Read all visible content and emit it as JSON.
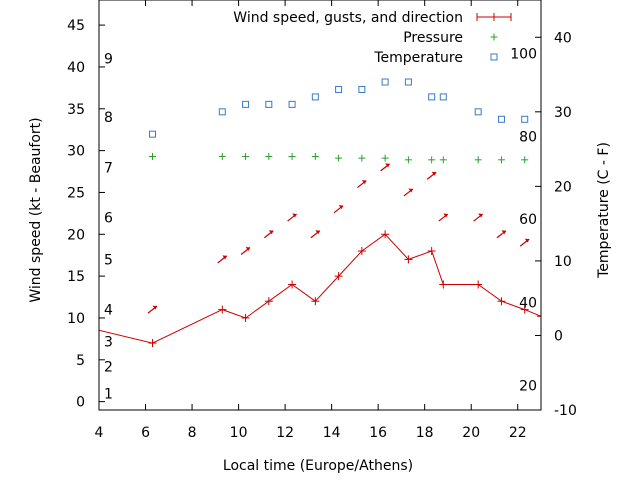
{
  "chart_data": {
    "type": "line",
    "xlabel": "Local time (Europe/Athens)",
    "ylabel_left": "Wind speed (kt - Beaufort)",
    "ylabel_right": "Temperature (C - F)",
    "x_range": [
      4,
      23
    ],
    "y_left_range": [
      -1,
      48
    ],
    "y_right_range": [
      -10,
      45
    ],
    "x_ticks": [
      4,
      6,
      8,
      10,
      12,
      14,
      16,
      18,
      20,
      22
    ],
    "y_left_ticks": [
      0,
      5,
      10,
      15,
      20,
      25,
      30,
      35,
      40,
      45
    ],
    "y_right_ticks": [
      -10,
      0,
      10,
      20,
      30,
      40
    ],
    "beaufort_labels": [
      {
        "label": "1",
        "at": 1.0
      },
      {
        "label": "2",
        "at": 4.2
      },
      {
        "label": "3",
        "at": 7.2
      },
      {
        "label": "4",
        "at": 11.0
      },
      {
        "label": "5",
        "at": 17.0
      },
      {
        "label": "6",
        "at": 22.0
      },
      {
        "label": "7",
        "at": 28.0
      },
      {
        "label": "8",
        "at": 34.0
      },
      {
        "label": "9",
        "at": 41.0
      }
    ],
    "fahrenheit_labels": [
      {
        "label": "20",
        "at": -6.7
      },
      {
        "label": "40",
        "at": 4.4
      },
      {
        "label": "60",
        "at": 15.6
      },
      {
        "label": "80",
        "at": 26.7
      },
      {
        "label": "100",
        "at": 37.8
      }
    ],
    "legend": [
      {
        "name": "Wind speed, gusts, and direction",
        "color": "#cc0000"
      },
      {
        "name": "Pressure",
        "color": "#2aa02a"
      },
      {
        "name": "Temperature",
        "color": "#3b78c8"
      }
    ],
    "wind_speed": {
      "x": [
        3.3,
        6.3,
        9.3,
        10.3,
        11.3,
        12.3,
        13.3,
        14.3,
        15.3,
        16.3,
        17.3,
        18.3,
        18.8,
        20.3,
        21.3,
        22.3,
        23.0
      ],
      "y": [
        9,
        7,
        11,
        10,
        12,
        14,
        12,
        15,
        18,
        20,
        17,
        18,
        14,
        14,
        12,
        11,
        10.2
      ]
    },
    "wind_direction": [
      {
        "x": 6.3,
        "y": 11,
        "dir": "ne"
      },
      {
        "x": 9.3,
        "y": 17,
        "dir": "ne"
      },
      {
        "x": 10.3,
        "y": 18,
        "dir": "ne"
      },
      {
        "x": 11.3,
        "y": 20,
        "dir": "ne"
      },
      {
        "x": 12.3,
        "y": 22,
        "dir": "ne"
      },
      {
        "x": 13.3,
        "y": 20,
        "dir": "ne"
      },
      {
        "x": 14.3,
        "y": 23,
        "dir": "ne"
      },
      {
        "x": 15.3,
        "y": 26,
        "dir": "ne"
      },
      {
        "x": 16.3,
        "y": 28,
        "dir": "ne"
      },
      {
        "x": 17.3,
        "y": 25,
        "dir": "ne"
      },
      {
        "x": 18.3,
        "y": 27,
        "dir": "ne"
      },
      {
        "x": 18.8,
        "y": 22,
        "dir": "ne"
      },
      {
        "x": 20.3,
        "y": 22,
        "dir": "ne"
      },
      {
        "x": 21.3,
        "y": 20,
        "dir": "ne"
      },
      {
        "x": 22.3,
        "y": 19,
        "dir": "ne"
      }
    ],
    "pressure": {
      "x": [
        6.3,
        9.3,
        10.3,
        11.3,
        12.3,
        13.3,
        14.3,
        15.3,
        16.3,
        17.3,
        18.3,
        18.8,
        20.3,
        21.3,
        22.3
      ],
      "y": [
        29.3,
        29.3,
        29.3,
        29.3,
        29.3,
        29.3,
        29.1,
        29.1,
        29.1,
        28.9,
        28.9,
        28.9,
        28.9,
        28.9,
        28.9
      ]
    },
    "temperature": {
      "x": [
        6.3,
        9.3,
        10.3,
        11.3,
        12.3,
        13.3,
        14.3,
        15.3,
        16.3,
        17.3,
        18.3,
        18.8,
        20.3,
        21.3,
        22.3
      ],
      "y": [
        27.0,
        30.0,
        31.0,
        31.0,
        31.0,
        32.0,
        33.0,
        33.0,
        34.0,
        34.0,
        32.0,
        32.0,
        30.0,
        29.0,
        29.0
      ]
    },
    "grid": false,
    "legend_position": "top-right"
  }
}
